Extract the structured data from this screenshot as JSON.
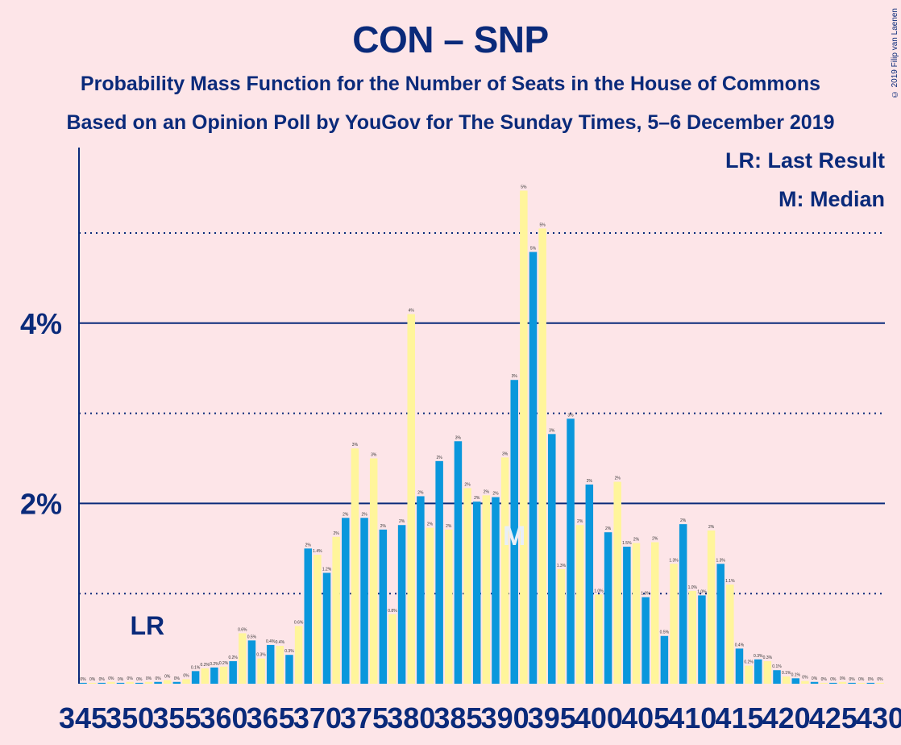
{
  "title": "CON – SNP",
  "subtitle1": "Probability Mass Function for the Number of Seats in the House of Commons",
  "subtitle2": "Based on an Opinion Poll by YouGov for The Sunday Times, 5–6 December 2019",
  "copyright": "© 2019 Filip van Laenen",
  "legend": {
    "lr": "LR: Last Result",
    "median": "M: Median"
  },
  "colors": {
    "blue": "#0a97dc",
    "yellow": "#fff59b",
    "axis": "#0a2a7a",
    "background": "#fde5e8"
  },
  "chart_data": {
    "type": "bar",
    "x": [
      345,
      346,
      347,
      348,
      349,
      350,
      351,
      352,
      353,
      354,
      355,
      356,
      357,
      358,
      359,
      360,
      361,
      362,
      363,
      364,
      365,
      366,
      367,
      368,
      369,
      370,
      371,
      372,
      373,
      374,
      375,
      376,
      377,
      378,
      379,
      380,
      381,
      382,
      383,
      384,
      385,
      386,
      387,
      388,
      389,
      390,
      391,
      392,
      393,
      394,
      395,
      396,
      397,
      398,
      399,
      400,
      401,
      402,
      403,
      404,
      405,
      406,
      407,
      408,
      409,
      410,
      411,
      412,
      413,
      414,
      415,
      416,
      417,
      418,
      419,
      420,
      421,
      422,
      423,
      424,
      425,
      426,
      427,
      428,
      429,
      430
    ],
    "values": [
      0.01,
      0.01,
      0.01,
      0.02,
      0.01,
      0.02,
      0.01,
      0.02,
      0.02,
      0.04,
      0.02,
      0.05,
      0.14,
      0.17,
      0.18,
      0.19,
      0.25,
      0.56,
      0.48,
      0.28,
      0.43,
      0.42,
      0.32,
      0.64,
      1.5,
      1.43,
      1.23,
      1.63,
      1.84,
      2.61,
      1.84,
      2.5,
      1.71,
      0.77,
      1.76,
      4.1,
      2.08,
      1.73,
      2.47,
      1.71,
      2.69,
      2.17,
      2.02,
      2.09,
      2.07,
      2.51,
      3.37,
      5.47,
      4.79,
      5.05,
      2.77,
      1.27,
      2.94,
      1.76,
      2.21,
      0.99,
      1.68,
      2.24,
      1.52,
      1.56,
      0.96,
      1.57,
      0.53,
      1.33,
      1.77,
      1.03,
      0.98,
      1.7,
      1.33,
      1.1,
      0.39,
      0.2,
      0.27,
      0.25,
      0.15,
      0.08,
      0.06,
      0.03,
      0.02,
      0.01,
      0.01,
      0.02,
      0.01,
      0.01,
      0.01,
      0.01
    ],
    "data_labels": [
      "0%",
      "0%",
      "0%",
      "0%",
      "0%",
      "0%",
      "0%",
      "0%",
      "0%",
      "0%",
      "0%",
      "0%",
      "0.1%",
      "0.2%",
      "0.2%",
      "0.2%",
      "0.2%",
      "0.6%",
      "0.5%",
      "0.3%",
      "0.4%",
      "0.4%",
      "0.3%",
      "0.6%",
      "2%",
      "1.4%",
      "1.2%",
      "2%",
      "2%",
      "3%",
      "2%",
      "3%",
      "2%",
      "0.8%",
      "2%",
      "4%",
      "2%",
      "2%",
      "2%",
      "2%",
      "3%",
      "2%",
      "2%",
      "2%",
      "2%",
      "3%",
      "3%",
      "5%",
      "5%",
      "5%",
      "3%",
      "1.3%",
      "3%",
      "2%",
      "2%",
      "1.0%",
      "2%",
      "2%",
      "1.5%",
      "2%",
      "1.0%",
      "2%",
      "0.5%",
      "1.3%",
      "2%",
      "1.0%",
      "1.0%",
      "2%",
      "1.3%",
      "1.1%",
      "0.4%",
      "0.2%",
      "0.3%",
      "0.3%",
      "0.1%",
      "0.1%",
      "0.1%",
      "0%",
      "0%",
      "0%",
      "0%",
      "0%",
      "0%",
      "0%",
      "0%",
      "0%"
    ],
    "x_tick_labels": [
      "345",
      "350",
      "355",
      "360",
      "365",
      "370",
      "375",
      "380",
      "385",
      "390",
      "395",
      "400",
      "405",
      "410",
      "415",
      "420",
      "425",
      "430"
    ],
    "y_tick_labels": [
      "2%",
      "4%"
    ],
    "y_ticks": [
      2,
      4
    ],
    "y_gridlines_dotted": [
      1,
      3,
      5
    ],
    "ylim": [
      0,
      5.9
    ],
    "xlim": [
      345,
      430
    ],
    "last_result": {
      "x": 351,
      "label": "LR"
    },
    "median": {
      "x": 391,
      "label": "M"
    },
    "bar_colors": "alternating blue (odd x) / yellow (even x)"
  }
}
